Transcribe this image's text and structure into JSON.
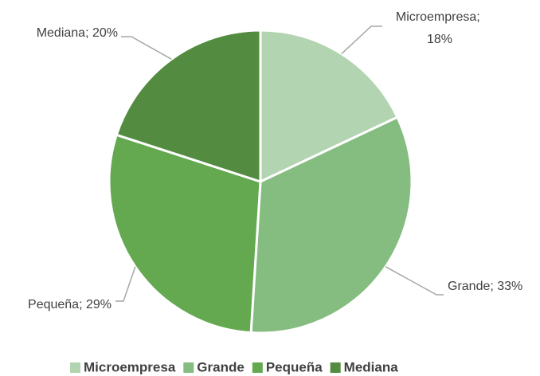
{
  "chart_data": {
    "type": "pie",
    "categories": [
      "Microempresa",
      "Grande",
      "Pequeña",
      "Mediana"
    ],
    "values": [
      18,
      33,
      29,
      20
    ],
    "value_labels": [
      "Microempresa; 18%",
      "Grande; 33%",
      "Pequeña; 29%",
      "Mediana; 20%"
    ],
    "colors": [
      "#b3d4b0",
      "#85bc80",
      "#64a850",
      "#538c40"
    ],
    "legend": "bottom"
  }
}
